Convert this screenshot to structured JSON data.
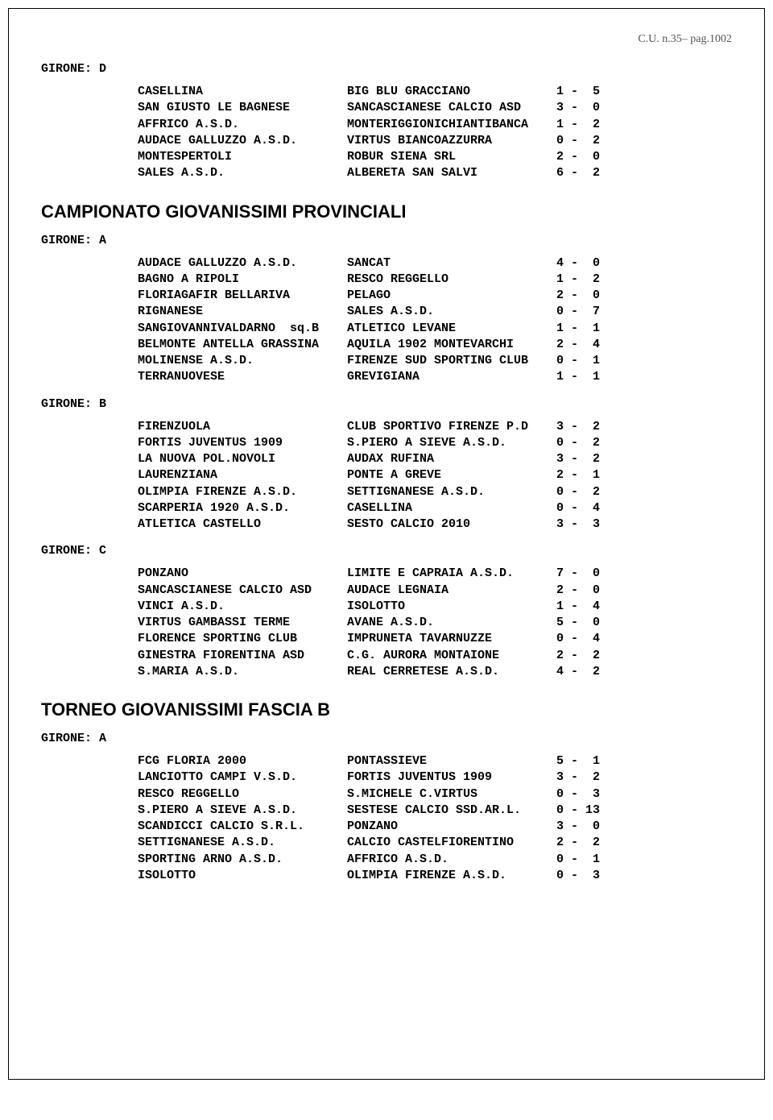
{
  "header": "C.U. n.35– pag.1002",
  "sections": [
    {
      "girone": "GIRONE:  D",
      "matches": [
        {
          "h": "CASELLINA",
          "a": "BIG BLU GRACCIANO",
          "s1": "1",
          "s2": "5"
        },
        {
          "h": "SAN GIUSTO LE BAGNESE",
          "a": "SANCASCIANESE CALCIO ASD",
          "s1": "3",
          "s2": "0"
        },
        {
          "h": "AFFRICO A.S.D.",
          "a": "MONTERIGGIONICHIANTIBANCA",
          "s1": "1",
          "s2": "2"
        },
        {
          "h": "AUDACE GALLUZZO A.S.D.",
          "a": "VIRTUS BIANCOAZZURRA",
          "s1": "0",
          "s2": "2"
        },
        {
          "h": "MONTESPERTOLI",
          "a": "ROBUR SIENA SRL",
          "s1": "2",
          "s2": "0"
        },
        {
          "h": "SALES A.S.D.",
          "a": "ALBERETA SAN SALVI",
          "s1": "6",
          "s2": "2"
        }
      ]
    },
    {
      "title": "CAMPIONATO GIOVANISSIMI PROVINCIALI",
      "girone": "GIRONE:  A",
      "matches": [
        {
          "h": "AUDACE GALLUZZO A.S.D.",
          "a": "SANCAT",
          "s1": "4",
          "s2": "0"
        },
        {
          "h": "BAGNO A RIPOLI",
          "a": "RESCO REGGELLO",
          "s1": "1",
          "s2": "2"
        },
        {
          "h": "FLORIAGAFIR BELLARIVA",
          "a": "PELAGO",
          "s1": "2",
          "s2": "0"
        },
        {
          "h": "RIGNANESE",
          "a": "SALES A.S.D.",
          "s1": "0",
          "s2": "7"
        },
        {
          "h": "SANGIOVANNIVALDARNO  sq.B",
          "a": "ATLETICO LEVANE",
          "s1": "1",
          "s2": "1"
        },
        {
          "h": "BELMONTE ANTELLA GRASSINA",
          "a": "AQUILA 1902 MONTEVARCHI",
          "s1": "2",
          "s2": "4"
        },
        {
          "h": "MOLINENSE A.S.D.",
          "a": "FIRENZE SUD SPORTING CLUB",
          "s1": "0",
          "s2": "1"
        },
        {
          "h": "TERRANUOVESE",
          "a": "GREVIGIANA",
          "s1": "1",
          "s2": "1"
        }
      ]
    },
    {
      "girone": "GIRONE:  B",
      "matches": [
        {
          "h": "FIRENZUOLA",
          "a": "CLUB SPORTIVO FIRENZE P.D",
          "s1": "3",
          "s2": "2"
        },
        {
          "h": "FORTIS JUVENTUS 1909",
          "a": "S.PIERO A SIEVE A.S.D.",
          "s1": "0",
          "s2": "2"
        },
        {
          "h": "LA NUOVA POL.NOVOLI",
          "a": "AUDAX RUFINA",
          "s1": "3",
          "s2": "2"
        },
        {
          "h": "LAURENZIANA",
          "a": "PONTE A GREVE",
          "s1": "2",
          "s2": "1"
        },
        {
          "h": "OLIMPIA FIRENZE A.S.D.",
          "a": "SETTIGNANESE A.S.D.",
          "s1": "0",
          "s2": "2"
        },
        {
          "h": "SCARPERIA 1920 A.S.D.",
          "a": "CASELLINA",
          "s1": "0",
          "s2": "4"
        },
        {
          "h": "ATLETICA CASTELLO",
          "a": "SESTO CALCIO 2010",
          "s1": "3",
          "s2": "3"
        }
      ]
    },
    {
      "girone": "GIRONE:  C",
      "matches": [
        {
          "h": "PONZANO",
          "a": "LIMITE E CAPRAIA A.S.D.",
          "s1": "7",
          "s2": "0"
        },
        {
          "h": "SANCASCIANESE CALCIO ASD",
          "a": "AUDACE LEGNAIA",
          "s1": "2",
          "s2": "0"
        },
        {
          "h": "VINCI A.S.D.",
          "a": "ISOLOTTO",
          "s1": "1",
          "s2": "4"
        },
        {
          "h": "VIRTUS GAMBASSI TERME",
          "a": "AVANE A.S.D.",
          "s1": "5",
          "s2": "0"
        },
        {
          "h": "FLORENCE SPORTING CLUB",
          "a": "IMPRUNETA TAVARNUZZE",
          "s1": "0",
          "s2": "4"
        },
        {
          "h": "GINESTRA FIORENTINA ASD",
          "a": "C.G. AURORA MONTAIONE",
          "s1": "2",
          "s2": "2"
        },
        {
          "h": "S.MARIA A.S.D.",
          "a": "REAL CERRETESE A.S.D.",
          "s1": "4",
          "s2": "2"
        }
      ]
    },
    {
      "title": "TORNEO GIOVANISSIMI FASCIA B",
      "girone": "GIRONE:  A",
      "matches": [
        {
          "h": "FCG FLORIA 2000",
          "a": "PONTASSIEVE",
          "s1": "5",
          "s2": "1"
        },
        {
          "h": "LANCIOTTO CAMPI V.S.D.",
          "a": "FORTIS JUVENTUS 1909",
          "s1": "3",
          "s2": "2"
        },
        {
          "h": "RESCO REGGELLO",
          "a": "S.MICHELE C.VIRTUS",
          "s1": "0",
          "s2": "3"
        },
        {
          "h": "S.PIERO A SIEVE A.S.D.",
          "a": "SESTESE CALCIO SSD.AR.L.",
          "s1": "0",
          "s2": "13"
        },
        {
          "h": "SCANDICCI CALCIO S.R.L.",
          "a": "PONZANO",
          "s1": "3",
          "s2": "0"
        },
        {
          "h": "SETTIGNANESE A.S.D.",
          "a": "CALCIO CASTELFIORENTINO",
          "s1": "2",
          "s2": "2"
        },
        {
          "h": "SPORTING ARNO A.S.D.",
          "a": "AFFRICO A.S.D.",
          "s1": "0",
          "s2": "1"
        },
        {
          "h": "ISOLOTTO",
          "a": "OLIMPIA FIRENZE A.S.D.",
          "s1": "0",
          "s2": "3"
        }
      ]
    }
  ]
}
